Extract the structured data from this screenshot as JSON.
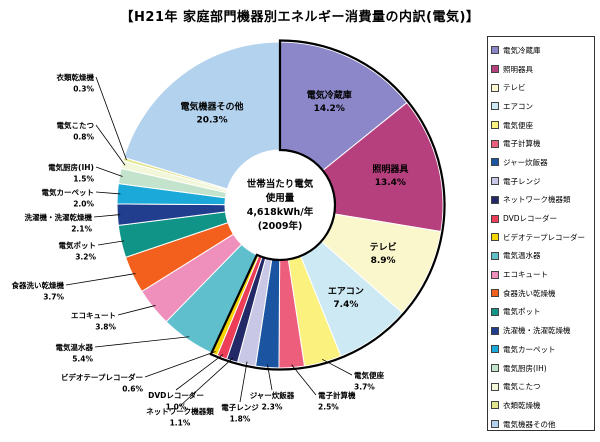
{
  "title": "【H21年 家庭部門機器別エネルギー消費量の内訳(電気)】",
  "chart_data": {
    "type": "pie",
    "title": "【H21年 家庭部門機器別エネルギー消費量の内訳(電気)】",
    "center_label": [
      "世帯当たり電気",
      "使用量",
      "4,618kWh/年",
      "(2009年)"
    ],
    "slices": [
      {
        "label": "電気冷蔵庫",
        "value": 14.2,
        "value_text": "14.2%",
        "color": "#8b87c9"
      },
      {
        "label": "照明器具",
        "value": 13.4,
        "value_text": "13.4%",
        "color": "#b6407e"
      },
      {
        "label": "テレビ",
        "value": 8.9,
        "value_text": "8.9%",
        "color": "#fbf7cc"
      },
      {
        "label": "エアコン",
        "value": 7.4,
        "value_text": "7.4%",
        "color": "#cde9f3"
      },
      {
        "label": "電気便座",
        "value": 3.7,
        "value_text": "3.7%",
        "color": "#faf17e"
      },
      {
        "label": "電子計算機",
        "value": 2.5,
        "value_text": "2.5%",
        "color": "#ec5e7c"
      },
      {
        "label": "ジャー炊飯器",
        "value": 2.3,
        "value_text": "2.3%",
        "color": "#1b55a2"
      },
      {
        "label": "電子レンジ",
        "value": 1.8,
        "value_text": "1.8%",
        "color": "#c8c8e6"
      },
      {
        "label": "ネットワーク機器類",
        "value": 1.1,
        "value_text": "1.1%",
        "color": "#232866"
      },
      {
        "label": "DVDレコーダー",
        "value": 1.0,
        "value_text": "1.0%",
        "color": "#ec3e58"
      },
      {
        "label": "ビデオテープレコーダー",
        "value": 0.6,
        "value_text": "0.6%",
        "color": "#f4d400"
      },
      {
        "label": "電気温水器",
        "value": 5.4,
        "value_text": "5.4%",
        "color": "#5fbfcd"
      },
      {
        "label": "エコキュート",
        "value": 3.8,
        "value_text": "3.8%",
        "color": "#ef8fbb"
      },
      {
        "label": "食器洗い乾燥機",
        "value": 3.7,
        "value_text": "3.7%",
        "color": "#f3601e"
      },
      {
        "label": "電気ポット",
        "value": 3.2,
        "value_text": "3.2%",
        "color": "#109487"
      },
      {
        "label": "洗濯機・洗濯乾燥機",
        "value": 2.1,
        "value_text": "2.1%",
        "color": "#213e8e"
      },
      {
        "label": "電気カーペット",
        "value": 2.0,
        "value_text": "2.0%",
        "color": "#1aa9d8"
      },
      {
        "label": "電気厨房(IH)",
        "value": 1.5,
        "value_text": "1.5%",
        "color": "#c4e3cc"
      },
      {
        "label": "電気こたつ",
        "value": 0.8,
        "value_text": "0.8%",
        "color": "#f1f7d8"
      },
      {
        "label": "衣類乾燥機",
        "value": 0.3,
        "value_text": "0.3%",
        "color": "#e2e58c"
      },
      {
        "label": "電気機器その他",
        "value": 20.3,
        "value_text": "20.3%",
        "color": "#b3d2ee"
      }
    ],
    "legend": {
      "placement": "right",
      "entries": [
        {
          "label": "電気冷蔵庫",
          "color": "#8b87c9"
        },
        {
          "label": "照明器具",
          "color": "#b6407e"
        },
        {
          "label": "テレビ",
          "color": "#fbf7cc"
        },
        {
          "label": "エアコン",
          "color": "#cde9f3"
        },
        {
          "label": "電気便座",
          "color": "#faf17e"
        },
        {
          "label": "電子計算機",
          "color": "#ec5e7c"
        },
        {
          "label": "ジャー炊飯器",
          "color": "#1b55a2"
        },
        {
          "label": "電子レンジ",
          "color": "#c8c8e6"
        },
        {
          "label": "ネットワーク機器類",
          "color": "#232866"
        },
        {
          "label": "DVDレコーダー",
          "color": "#ec3e58"
        },
        {
          "label": "ビデオテープレコーダー",
          "color": "#f4d400"
        },
        {
          "label": "電気温水器",
          "color": "#5fbfcd"
        },
        {
          "label": "エコキュート",
          "color": "#ef8fbb"
        },
        {
          "label": "食器洗い乾燥機",
          "color": "#f3601e"
        },
        {
          "label": "電気ポット",
          "color": "#109487"
        },
        {
          "label": "洗濯機・洗濯乾燥機",
          "color": "#213e8e"
        },
        {
          "label": "電気カーペット",
          "color": "#1aa9d8"
        },
        {
          "label": "電気厨房(IH)",
          "color": "#c4e3cc"
        },
        {
          "label": "電気こたつ",
          "color": "#f1f7d8"
        },
        {
          "label": "衣類乾燥機",
          "color": "#e2e58c"
        },
        {
          "label": "電気機器その他",
          "color": "#b3d2ee"
        }
      ]
    }
  }
}
